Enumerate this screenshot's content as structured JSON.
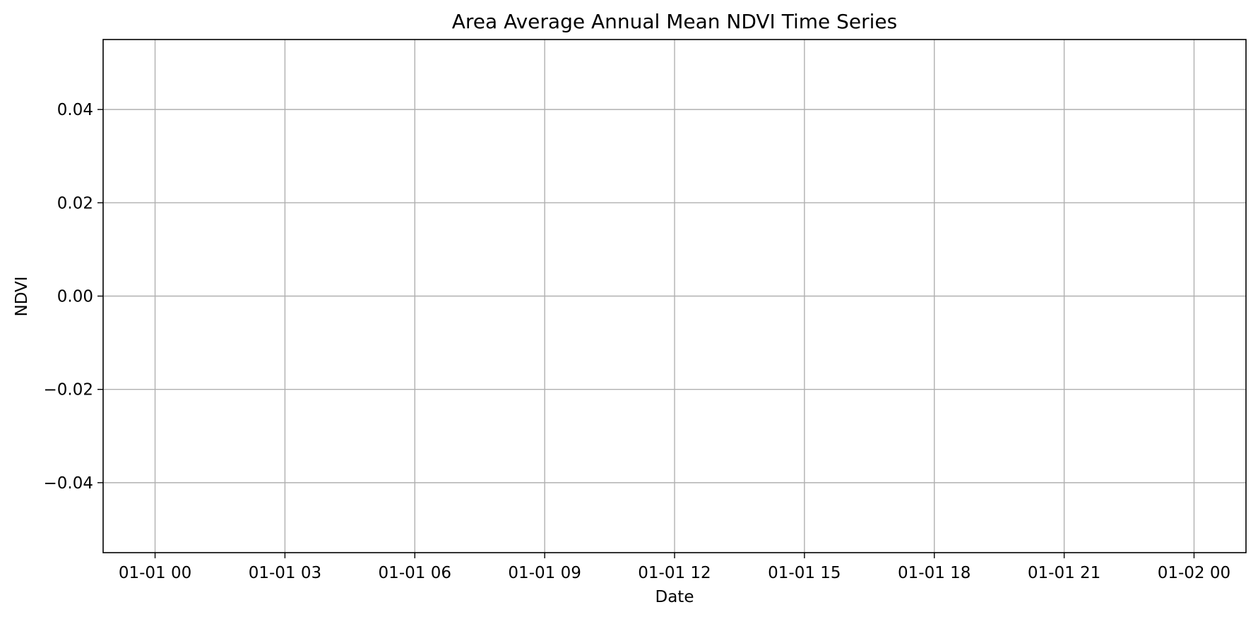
{
  "chart_data": {
    "type": "line",
    "title": "Area Average Annual Mean NDVI Time Series",
    "xlabel": "Date",
    "ylabel": "NDVI",
    "x_tick_labels": [
      "01-01 00",
      "01-01 03",
      "01-01 06",
      "01-01 09",
      "01-01 12",
      "01-01 15",
      "01-01 18",
      "01-01 21",
      "01-02 00"
    ],
    "x_tick_hours": [
      0,
      3,
      6,
      9,
      12,
      15,
      18,
      21,
      24
    ],
    "xlim_hours": [
      -1.2,
      25.2
    ],
    "y_tick_values": [
      -0.04,
      -0.02,
      0.0,
      0.02,
      0.04
    ],
    "y_tick_labels": [
      "−0.04",
      "−0.02",
      "0.00",
      "0.02",
      "0.04"
    ],
    "ylim": [
      -0.055,
      0.055
    ],
    "grid": true,
    "series": [
      {
        "name": "NDVI",
        "x": [],
        "values": []
      }
    ],
    "colors": {
      "background": "#ffffff",
      "grid": "#b0b0b0",
      "axis": "#000000",
      "text": "#000000"
    }
  }
}
